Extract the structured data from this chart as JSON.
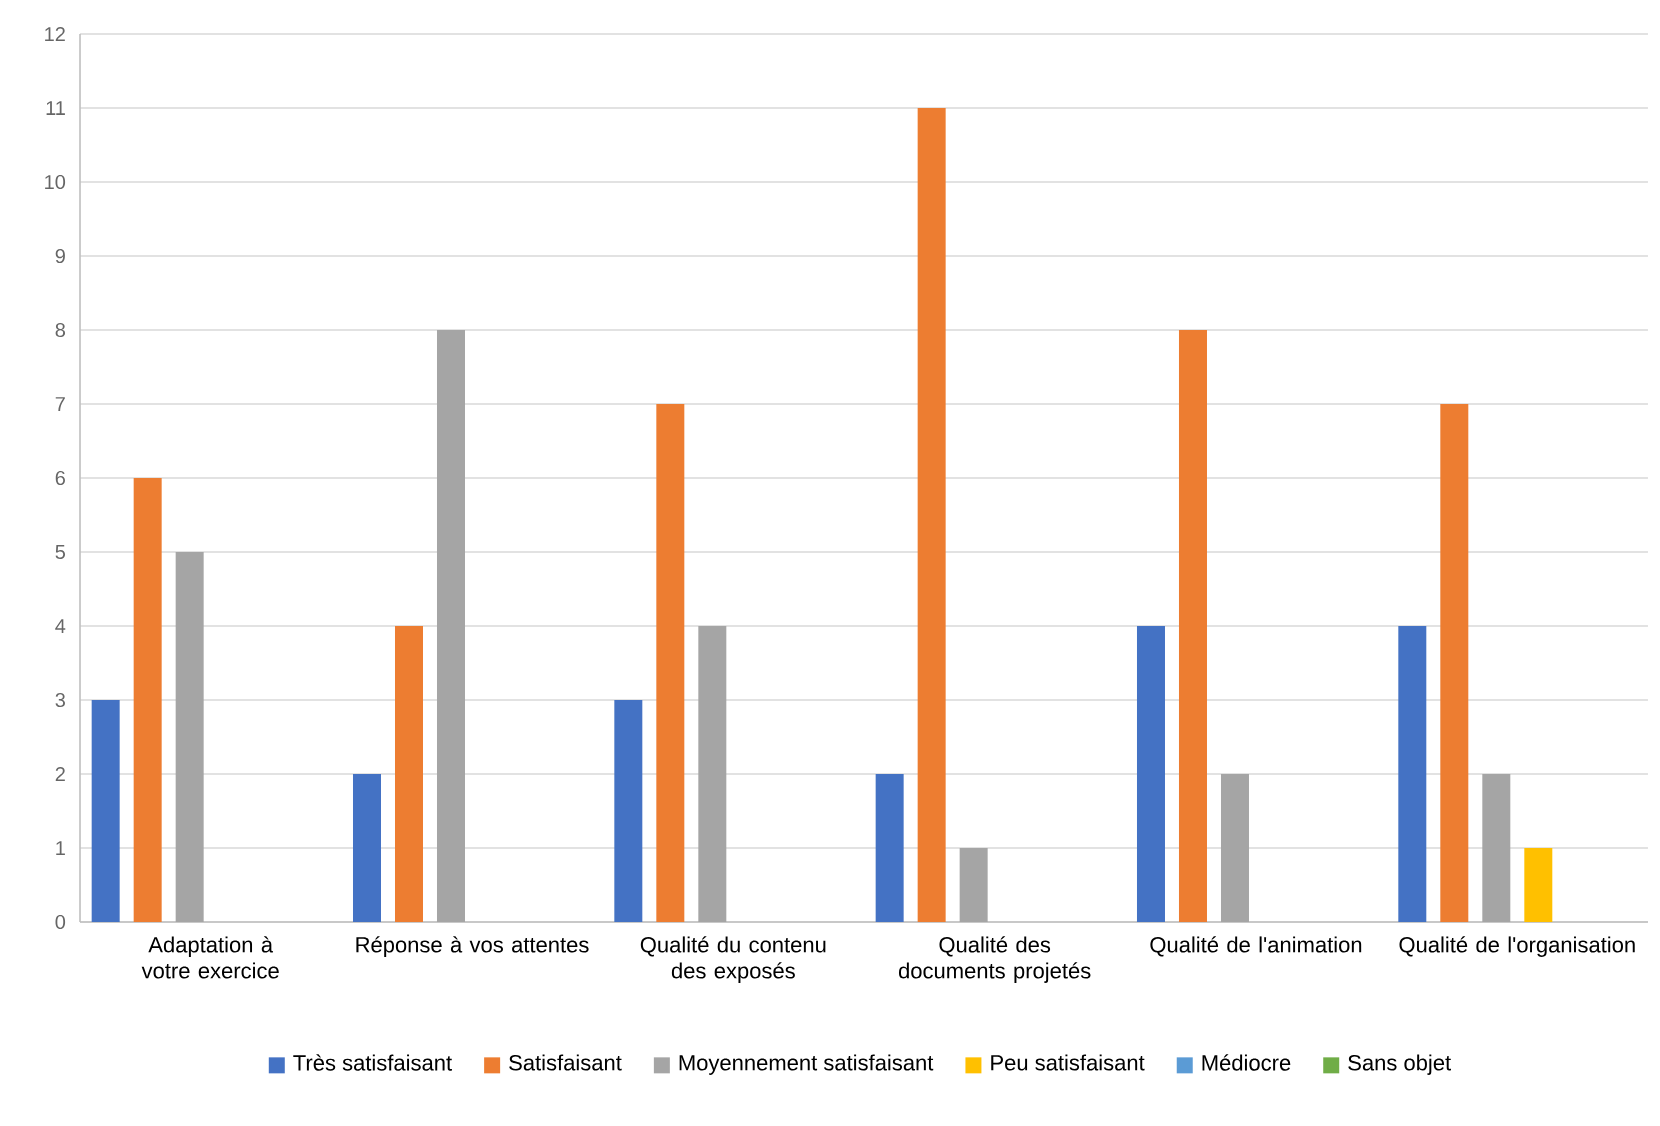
{
  "chart_data": {
    "type": "bar",
    "categories": [
      "Adaptation à votre exercice",
      "Réponse à vos attentes",
      "Qualité du contenu des exposés",
      "Qualité des documents projetés",
      "Qualité de l'animation",
      "Qualité de l'organisation"
    ],
    "series": [
      {
        "name": "Très satisfaisant",
        "color": "#4472c4",
        "values": [
          3,
          2,
          3,
          2,
          4,
          4
        ]
      },
      {
        "name": "Satisfaisant",
        "color": "#ed7d31",
        "values": [
          6,
          4,
          7,
          11,
          8,
          7
        ]
      },
      {
        "name": "Moyennement satisfaisant",
        "color": "#a5a5a5",
        "values": [
          5,
          8,
          4,
          1,
          2,
          2
        ]
      },
      {
        "name": "Peu satisfaisant",
        "color": "#ffc000",
        "values": [
          0,
          0,
          0,
          0,
          0,
          1
        ]
      },
      {
        "name": "Médiocre",
        "color": "#5b9bd5",
        "values": [
          0,
          0,
          0,
          0,
          0,
          0
        ]
      },
      {
        "name": "Sans objet",
        "color": "#70ad47",
        "values": [
          0,
          0,
          0,
          0,
          0,
          0
        ]
      }
    ],
    "ylim": [
      0,
      12
    ],
    "yticks": [
      0,
      1,
      2,
      3,
      4,
      5,
      6,
      7,
      8,
      9,
      10,
      11,
      12
    ],
    "grid": "y",
    "legend": "bottom"
  }
}
